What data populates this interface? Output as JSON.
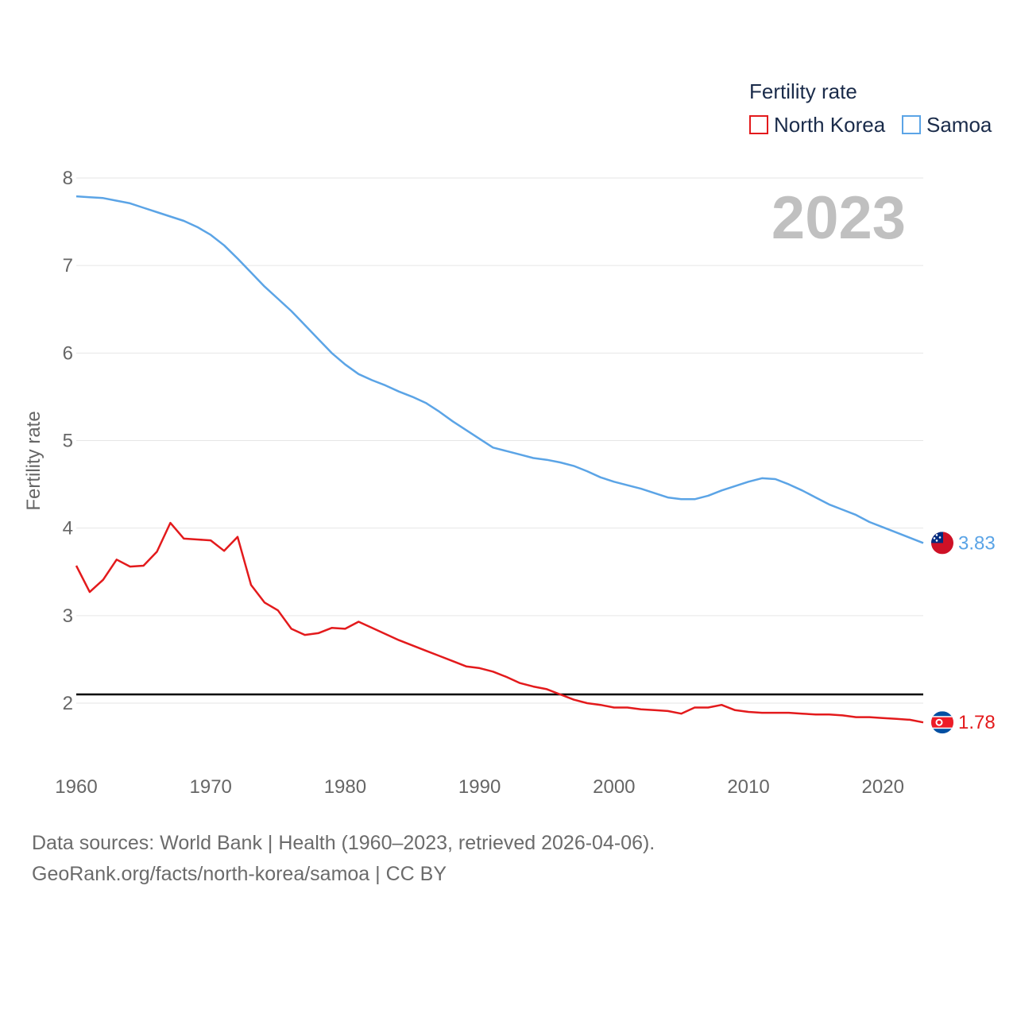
{
  "chart_data": {
    "type": "line",
    "legend_title": "Fertility rate",
    "ylabel": "Fertility rate",
    "year_label": "2023",
    "ylim": [
      1.4,
      8.2
    ],
    "xlim": [
      1960,
      2023
    ],
    "y_ticks": [
      2,
      3,
      4,
      5,
      6,
      7,
      8
    ],
    "x_ticks": [
      1960,
      1970,
      1980,
      1990,
      2000,
      2010,
      2020
    ],
    "reference_line": 2.1,
    "series": [
      {
        "name": "North Korea",
        "color": "#e31a1c",
        "end_label": "1.78",
        "x": [
          1960,
          1961,
          1962,
          1963,
          1964,
          1965,
          1966,
          1967,
          1968,
          1969,
          1970,
          1971,
          1972,
          1973,
          1974,
          1975,
          1976,
          1977,
          1978,
          1979,
          1980,
          1981,
          1982,
          1983,
          1984,
          1985,
          1986,
          1987,
          1988,
          1989,
          1990,
          1991,
          1992,
          1993,
          1994,
          1995,
          1996,
          1997,
          1998,
          1999,
          2000,
          2001,
          2002,
          2003,
          2004,
          2005,
          2006,
          2007,
          2008,
          2009,
          2010,
          2011,
          2012,
          2013,
          2014,
          2015,
          2016,
          2017,
          2018,
          2019,
          2020,
          2021,
          2022,
          2023
        ],
        "values": [
          3.57,
          3.27,
          3.41,
          3.64,
          3.56,
          3.57,
          3.73,
          4.06,
          3.88,
          3.87,
          3.86,
          3.74,
          3.9,
          3.35,
          3.15,
          3.06,
          2.85,
          2.78,
          2.8,
          2.86,
          2.85,
          2.93,
          2.86,
          2.79,
          2.72,
          2.66,
          2.6,
          2.54,
          2.48,
          2.42,
          2.4,
          2.36,
          2.3,
          2.23,
          2.19,
          2.16,
          2.1,
          2.04,
          2.0,
          1.98,
          1.95,
          1.95,
          1.93,
          1.92,
          1.91,
          1.88,
          1.95,
          1.95,
          1.98,
          1.92,
          1.9,
          1.89,
          1.89,
          1.89,
          1.88,
          1.87,
          1.87,
          1.86,
          1.84,
          1.84,
          1.83,
          1.82,
          1.81,
          1.78
        ]
      },
      {
        "name": "Samoa",
        "color": "#5ba4e6",
        "end_label": "3.83",
        "x": [
          1960,
          1961,
          1962,
          1963,
          1964,
          1965,
          1966,
          1967,
          1968,
          1969,
          1970,
          1971,
          1972,
          1973,
          1974,
          1975,
          1976,
          1977,
          1978,
          1979,
          1980,
          1981,
          1982,
          1983,
          1984,
          1985,
          1986,
          1987,
          1988,
          1989,
          1990,
          1991,
          1992,
          1993,
          1994,
          1995,
          1996,
          1997,
          1998,
          1999,
          2000,
          2001,
          2002,
          2003,
          2004,
          2005,
          2006,
          2007,
          2008,
          2009,
          2010,
          2011,
          2012,
          2013,
          2014,
          2015,
          2016,
          2017,
          2018,
          2019,
          2020,
          2021,
          2022,
          2023
        ],
        "values": [
          7.79,
          7.78,
          7.77,
          7.74,
          7.71,
          7.66,
          7.61,
          7.56,
          7.51,
          7.44,
          7.35,
          7.23,
          7.08,
          6.92,
          6.76,
          6.62,
          6.48,
          6.32,
          6.16,
          6.0,
          5.87,
          5.76,
          5.69,
          5.63,
          5.56,
          5.5,
          5.43,
          5.33,
          5.22,
          5.12,
          5.02,
          4.92,
          4.88,
          4.84,
          4.8,
          4.78,
          4.75,
          4.71,
          4.65,
          4.58,
          4.53,
          4.49,
          4.45,
          4.4,
          4.35,
          4.33,
          4.33,
          4.37,
          4.43,
          4.48,
          4.53,
          4.57,
          4.56,
          4.5,
          4.43,
          4.35,
          4.27,
          4.21,
          4.15,
          4.07,
          4.01,
          3.95,
          3.89,
          3.83
        ]
      }
    ]
  },
  "footer": {
    "line1": "Data sources: World Bank | Health (1960–2023, retrieved 2026-04-06).",
    "line2": "GeoRank.org/facts/north-korea/samoa | CC BY"
  }
}
